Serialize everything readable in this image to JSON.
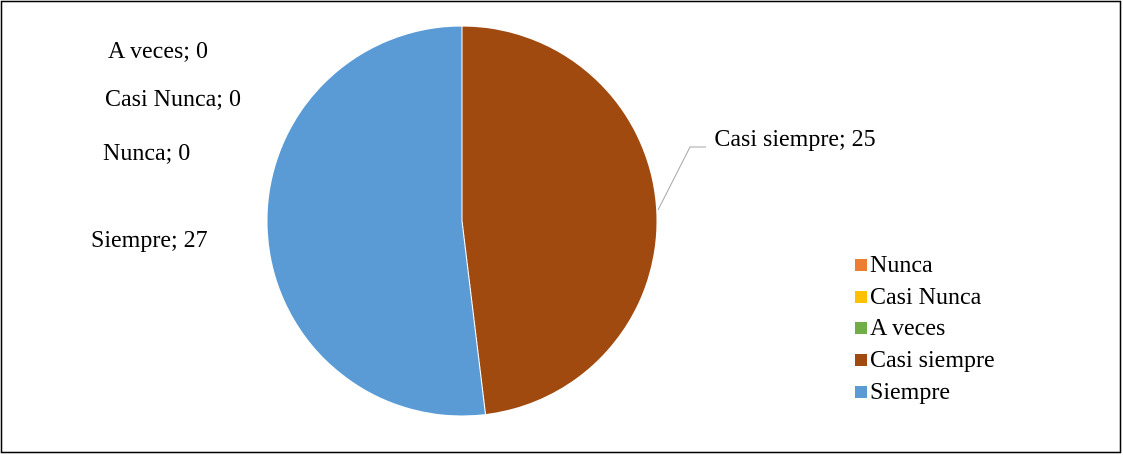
{
  "chart_data": {
    "type": "pie",
    "categories": [
      "Nunca",
      "Casi Nunca",
      "A veces",
      "Casi siempre",
      "Siempre"
    ],
    "values": [
      0,
      0,
      0,
      25,
      27
    ],
    "value_labels": [
      "Nunca; 0",
      "Casi Nunca; 0",
      "A veces; 0",
      "Casi siempre; 25",
      "Siempre; 27"
    ],
    "colors": [
      "#ED7D31",
      "#FFC000",
      "#70AD47",
      "#A04A10",
      "#5B9BD5"
    ],
    "legend": "right"
  }
}
